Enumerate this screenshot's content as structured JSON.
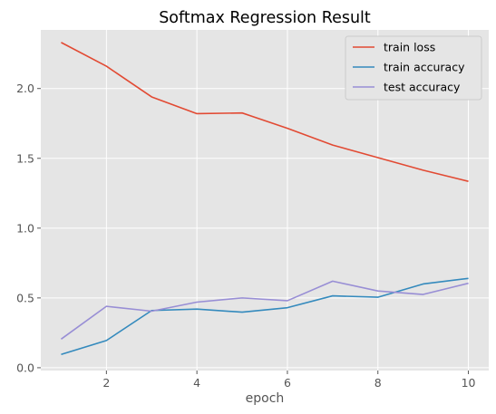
{
  "chart_data": {
    "type": "line",
    "title": "Softmax Regression Result",
    "xlabel": "epoch",
    "ylabel": "",
    "x": [
      1,
      2,
      3,
      4,
      5,
      6,
      7,
      8,
      9,
      10
    ],
    "xlim": [
      0.55,
      10.45
    ],
    "ylim": [
      -0.02,
      2.42
    ],
    "xticks": [
      2,
      4,
      6,
      8,
      10
    ],
    "yticks": [
      0.0,
      0.5,
      1.0,
      1.5,
      2.0
    ],
    "xtick_labels": [
      "2",
      "4",
      "6",
      "8",
      "10"
    ],
    "ytick_labels": [
      "0.0",
      "0.5",
      "1.0",
      "1.5",
      "2.0"
    ],
    "grid": true,
    "legend_position": "top-right",
    "series": [
      {
        "name": "train loss",
        "color": "#E24A33",
        "values": [
          2.33,
          2.16,
          1.94,
          1.82,
          1.825,
          1.715,
          1.595,
          1.505,
          1.415,
          1.335
        ]
      },
      {
        "name": "train accuracy",
        "color": "#348ABD",
        "values": [
          0.095,
          0.195,
          0.41,
          0.42,
          0.398,
          0.43,
          0.515,
          0.505,
          0.6,
          0.64
        ]
      },
      {
        "name": "test accuracy",
        "color": "#988ED5",
        "values": [
          0.205,
          0.44,
          0.405,
          0.47,
          0.5,
          0.48,
          0.62,
          0.55,
          0.525,
          0.605
        ]
      }
    ]
  }
}
